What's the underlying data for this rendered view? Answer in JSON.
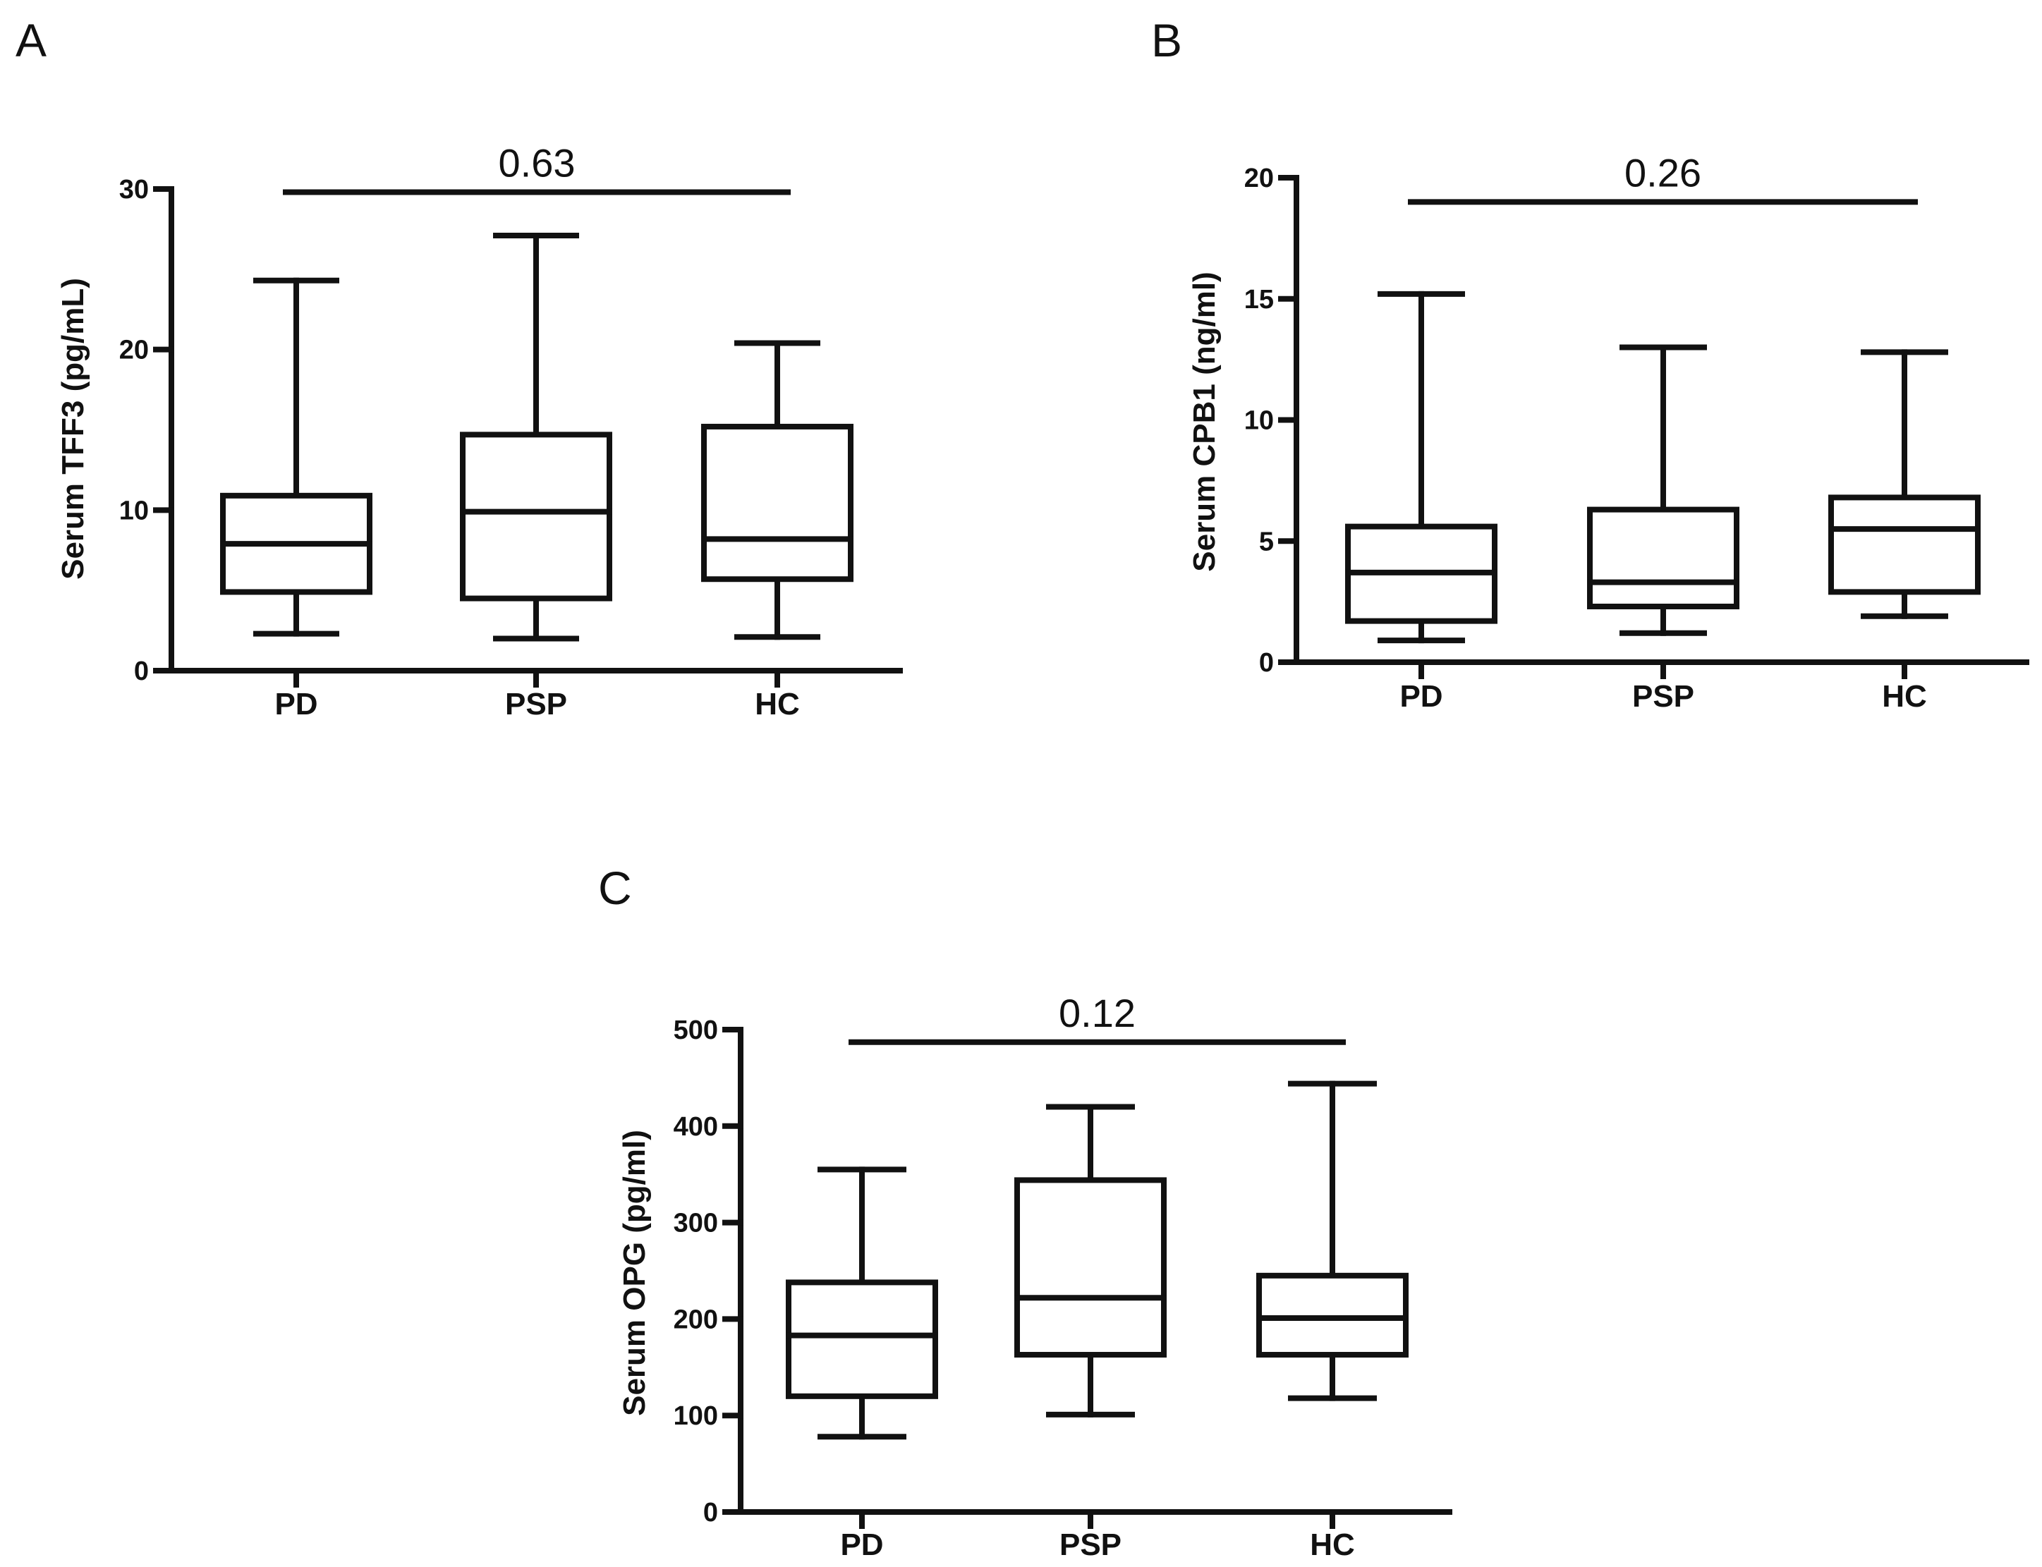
{
  "chart_data": [
    {
      "type": "boxplot",
      "panel": "A",
      "title": "",
      "xlabel": "",
      "ylabel": "Serum TFF3 (pg/mL)",
      "ylim": [
        0,
        30
      ],
      "yticks": [
        0,
        10,
        20,
        30
      ],
      "categories": [
        "PD",
        "PSP",
        "HC"
      ],
      "boxes": [
        {
          "min": 2.3,
          "q1": 4.9,
          "median": 7.9,
          "q3": 10.9,
          "max": 24.3
        },
        {
          "min": 2.0,
          "q1": 4.5,
          "median": 9.9,
          "q3": 14.7,
          "max": 27.1
        },
        {
          "min": 2.1,
          "q1": 5.7,
          "median": 8.2,
          "q3": 15.2,
          "max": 20.4
        }
      ],
      "comparison": {
        "from": 0,
        "to": 2,
        "label": "0.63",
        "y": 29.8
      }
    },
    {
      "type": "boxplot",
      "panel": "B",
      "title": "",
      "xlabel": "",
      "ylabel": "Serum CPB1 (ng/ml)",
      "ylim": [
        0,
        20
      ],
      "yticks": [
        0,
        5,
        10,
        15,
        20
      ],
      "categories": [
        "PD",
        "PSP",
        "HC"
      ],
      "boxes": [
        {
          "min": 0.9,
          "q1": 1.7,
          "median": 3.7,
          "q3": 5.6,
          "max": 15.2
        },
        {
          "min": 1.2,
          "q1": 2.3,
          "median": 3.3,
          "q3": 6.3,
          "max": 13.0
        },
        {
          "min": 1.9,
          "q1": 2.9,
          "median": 5.5,
          "q3": 6.8,
          "max": 12.8
        }
      ],
      "comparison": {
        "from": 0,
        "to": 2,
        "label": "0.26",
        "y": 19.0
      }
    },
    {
      "type": "boxplot",
      "panel": "C",
      "title": "",
      "xlabel": "",
      "ylabel": "Serum OPG (pg/ml)",
      "ylim": [
        0,
        500
      ],
      "yticks": [
        0,
        100,
        200,
        300,
        400,
        500
      ],
      "categories": [
        "PD",
        "PSP",
        "HC"
      ],
      "boxes": [
        {
          "min": 78,
          "q1": 120,
          "median": 183,
          "q3": 238,
          "max": 355
        },
        {
          "min": 101,
          "q1": 163,
          "median": 222,
          "q3": 344,
          "max": 420
        },
        {
          "min": 118,
          "q1": 163,
          "median": 201,
          "q3": 245,
          "max": 444
        }
      ],
      "comparison": {
        "from": 0,
        "to": 2,
        "label": "0.12",
        "y": 487
      }
    }
  ]
}
